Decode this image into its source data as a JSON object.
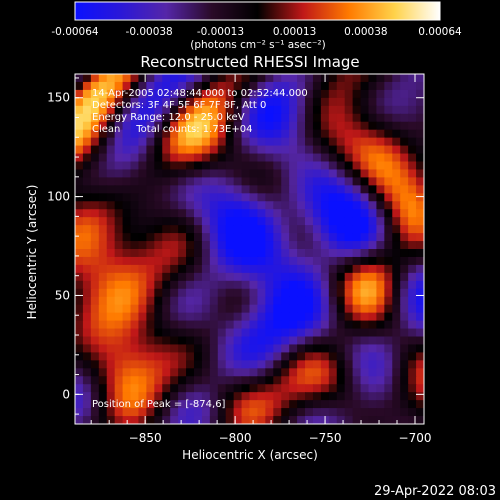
{
  "colorbar": {
    "tick_labels": [
      "-0.00064",
      "-0.00038",
      "-0.00013",
      "0.00013",
      "0.00038",
      "0.00064"
    ],
    "values": [
      -0.00064,
      -0.00038,
      -0.00013,
      0.00013,
      0.00038,
      0.00064
    ],
    "unit_label": "(photons cm⁻² s⁻¹ asec⁻²)",
    "palette": [
      "#0a10ff",
      "#2a18d8",
      "#5526a8",
      "#2a0a28",
      "#000000",
      "#c01818",
      "#ff7a00",
      "#ffd24a",
      "#ffffff"
    ]
  },
  "chart_data": {
    "type": "heatmap",
    "title": "Reconstructed RHESSI Image",
    "xlabel": "Heliocentric X (arcsec)",
    "ylabel": "Heliocentric Y (arcsec)",
    "xlim": [
      -889,
      -695
    ],
    "ylim": [
      -15,
      162
    ],
    "xticks": [
      -850,
      -800,
      -750,
      -700
    ],
    "xtick_labels": [
      "−850",
      "−800",
      "−750",
      "−700"
    ],
    "yticks": [
      0,
      50,
      100,
      150
    ],
    "ytick_labels": [
      "0",
      "50",
      "100",
      "150"
    ],
    "info_lines": [
      "14-Apr-2005 02:48:44.000 to 02:52:44.000",
      "Detectors: 3F 4F 5F 6F 7F 8F, Att 0",
      "Energy Range: 12.0 - 25.0 keV",
      "Clean     Total counts: 1.73E+04"
    ],
    "peak_label": "Position of Peak = [-874,6]",
    "peak_position": [
      -874,
      6
    ],
    "grid": false
  },
  "footer": {
    "timestamp": "29-Apr-2022 08:03"
  }
}
